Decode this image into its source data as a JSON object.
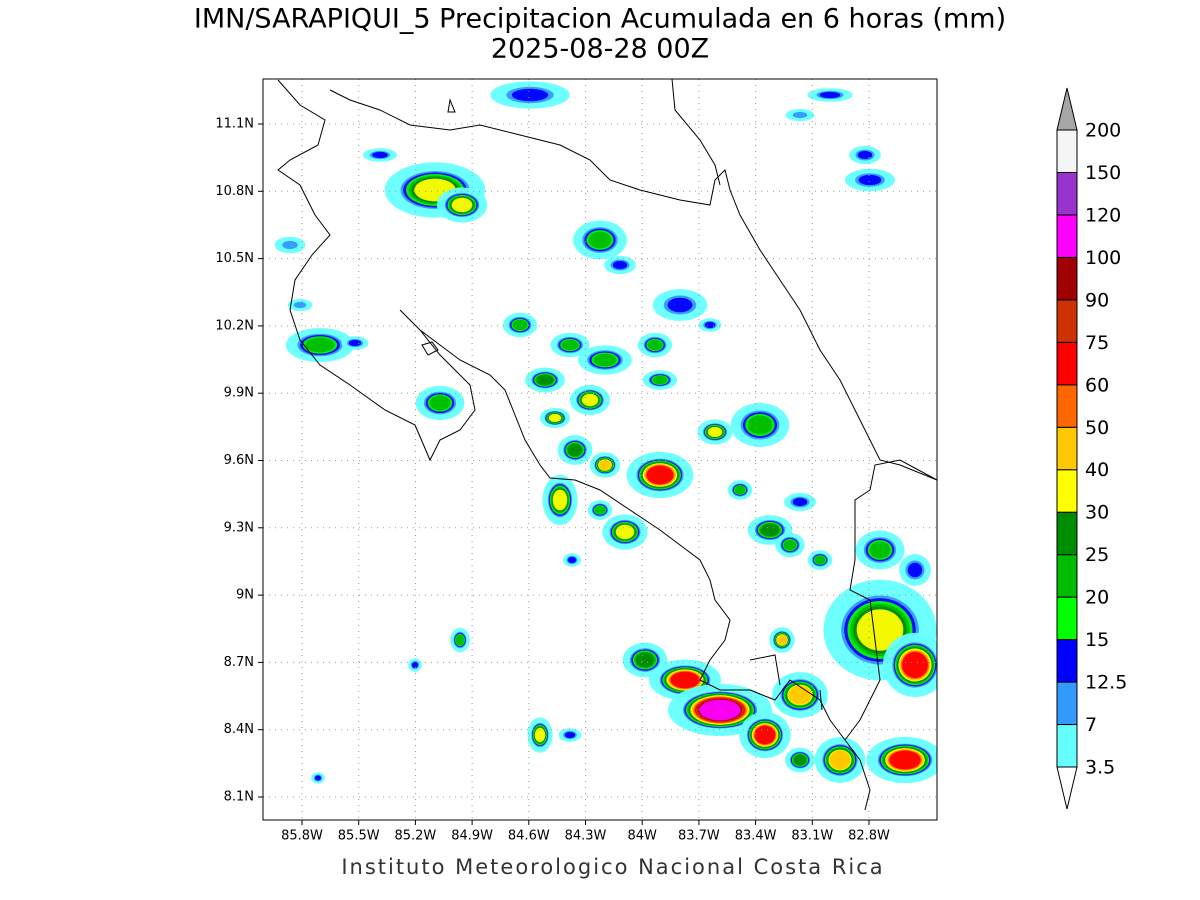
{
  "title": "IMN/SARAPIQUI_5 Precipitacion Acumulada en 6 horas (mm)",
  "subtitle": "2025-08-28 00Z",
  "map": {
    "lon_labels": [
      "85.8W",
      "85.5W",
      "85.2W",
      "84.9W",
      "84.6W",
      "84.3W",
      "84W",
      "83.7W",
      "83.4W",
      "83.1W",
      "82.8W"
    ],
    "lat_labels": [
      "11.1N",
      "10.8N",
      "10.5N",
      "10.2N",
      "9.9N",
      "9.6N",
      "9.3N",
      "9N",
      "8.7N",
      "8.4N",
      "8.1N"
    ]
  },
  "colorbar": {
    "levels": [
      3.5,
      7,
      12.5,
      15,
      20,
      25,
      30,
      40,
      50,
      60,
      75,
      90,
      100,
      120,
      150,
      200
    ],
    "colors": [
      "#66ffff",
      "#3399ff",
      "#0000ff",
      "#00ff00",
      "#00bb00",
      "#008c00",
      "#ffff00",
      "#ffc800",
      "#ff6600",
      "#ff0000",
      "#cc3300",
      "#a00000",
      "#ff00ff",
      "#9933cc",
      "#f5f5f5"
    ],
    "over_color": "#a6a6a6",
    "under_color": "#ffffff"
  },
  "footer": "Instituto Meteorologico Nacional Costa Rica"
}
